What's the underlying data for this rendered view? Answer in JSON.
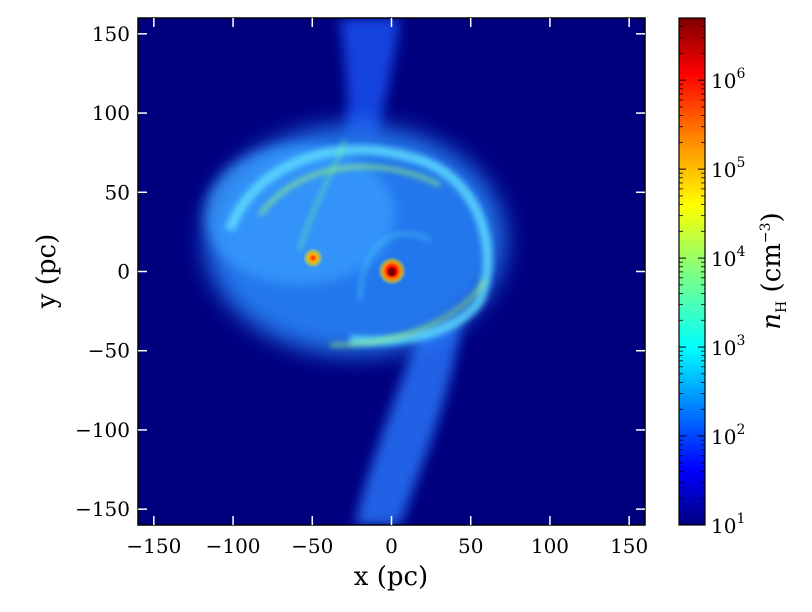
{
  "chart_data": {
    "type": "heatmap",
    "title": "",
    "xlabel": "x (pc)",
    "ylabel": "y (pc)",
    "xlim": [
      -160,
      160
    ],
    "ylim": [
      -160,
      160
    ],
    "xticks": [
      -150,
      -100,
      -50,
      0,
      50,
      100,
      150
    ],
    "yticks": [
      -150,
      -100,
      -50,
      0,
      50,
      100,
      150
    ],
    "colorbar": {
      "label": "n_H (cm^-3)",
      "scale": "log",
      "range": [
        10,
        5000000
      ],
      "tick_labels": [
        "10^1",
        "10^2",
        "10^3",
        "10^4",
        "10^5",
        "10^6"
      ],
      "colormap": "jet"
    },
    "features": [
      {
        "name": "dense core",
        "x": 0,
        "y": 0,
        "peak_nH": 1000000
      },
      {
        "name": "secondary clump",
        "x": -50,
        "y": 8,
        "peak_nH": 100000
      }
    ],
    "background_nH": 10
  },
  "colors": {
    "background": "#00007f",
    "jet": [
      "#00007f",
      "#0000ff",
      "#007fff",
      "#00ffff",
      "#7fff7f",
      "#ffff00",
      "#ff7f00",
      "#ff0000",
      "#7f0000"
    ]
  }
}
